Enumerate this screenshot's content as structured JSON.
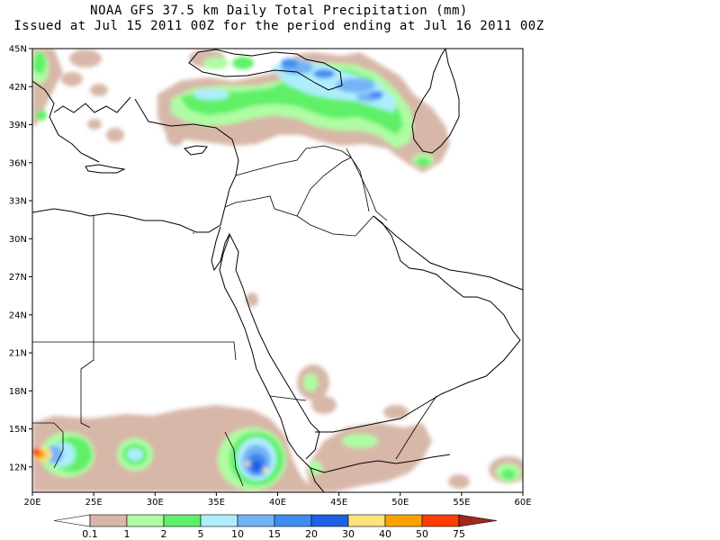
{
  "title": "NOAA GFS 37.5 km Daily Total Precipitation (mm)",
  "subtitle": "Issued at Jul 15 2011 00Z for the period ending at Jul 16 2011 00Z",
  "map": {
    "lon_range": [
      20,
      60
    ],
    "lat_range": [
      10,
      45
    ],
    "lat_labels": [
      "45N",
      "42N",
      "39N",
      "36N",
      "33N",
      "30N",
      "27N",
      "24N",
      "21N",
      "18N",
      "15N",
      "12N"
    ],
    "lat_values": [
      45,
      42,
      39,
      36,
      33,
      30,
      27,
      24,
      21,
      18,
      15,
      12
    ],
    "lon_labels": [
      "20E",
      "25E",
      "30E",
      "35E",
      "40E",
      "45E",
      "50E",
      "55E",
      "60E"
    ],
    "lon_values": [
      20,
      25,
      30,
      35,
      40,
      45,
      50,
      55,
      60
    ]
  },
  "legend": {
    "labels": [
      "0.1",
      "1",
      "2",
      "5",
      "10",
      "15",
      "20",
      "30",
      "40",
      "50",
      "75"
    ],
    "colors": [
      "#ffffff",
      "#d7b7a8",
      "#aefca4",
      "#5ef068",
      "#aeeefc",
      "#74b2f6",
      "#3e8cf2",
      "#1e60e6",
      "#fce37a",
      "#fca200",
      "#fc3e00",
      "#a0281e"
    ]
  },
  "colors": {
    "land_line": "#000000",
    "trace": "#d7b7a8",
    "light_green": "#aefca4",
    "green": "#5ef068",
    "light_blue": "#aeeefc",
    "blue": "#74b2f6",
    "mid_blue": "#3e8cf2",
    "dark_blue": "#1e60e6",
    "yellow": "#fce37a",
    "orange": "#fca200",
    "red": "#fc3e00"
  }
}
